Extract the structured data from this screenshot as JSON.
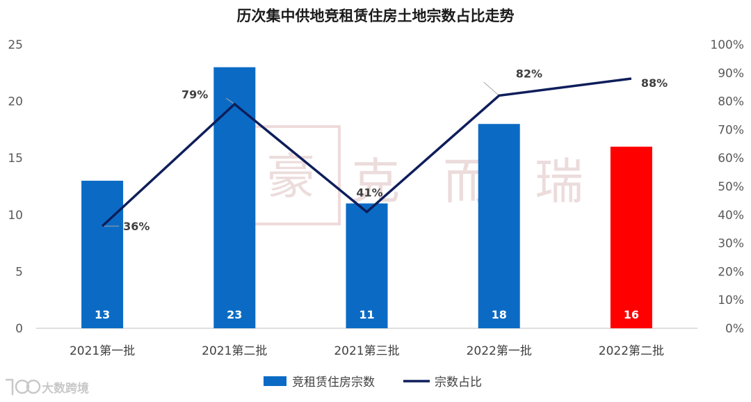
{
  "chart_data": {
    "type": "bar+line",
    "title": "历次集中供地竞租赁住房土地宗数占比走势",
    "categories": [
      "2021第一批",
      "2021第二批",
      "2021第三批",
      "2022第一批",
      "2022第二批"
    ],
    "series": [
      {
        "name": "竞租赁住房宗数",
        "type": "bar",
        "axis": "left",
        "values": [
          13,
          23,
          11,
          18,
          16
        ],
        "labels": [
          "13",
          "23",
          "11",
          "18",
          "16"
        ],
        "colors": [
          "#0B6BC4",
          "#0B6BC4",
          "#0B6BC4",
          "#0B6BC4",
          "#FF0000"
        ]
      },
      {
        "name": "宗数占比",
        "type": "line",
        "axis": "right",
        "values": [
          0.36,
          0.79,
          0.41,
          0.82,
          0.88
        ],
        "labels": [
          "36%",
          "79%",
          "41%",
          "82%",
          "88%"
        ],
        "color": "#0E1E5B"
      }
    ],
    "y_left": {
      "min": 0,
      "max": 25,
      "ticks": [
        "0",
        "5",
        "10",
        "15",
        "20",
        "25"
      ]
    },
    "y_right": {
      "min": 0,
      "max": 1,
      "ticks": [
        "0%",
        "10%",
        "20%",
        "30%",
        "40%",
        "50%",
        "60%",
        "70%",
        "80%",
        "90%",
        "100%"
      ]
    },
    "grid": false,
    "legend": "bottom-center"
  },
  "watermark": {
    "text": "克而瑞",
    "logo_char": "豪"
  },
  "brand": {
    "text": "大数跨境",
    "icon": "brand-logo-icon"
  }
}
